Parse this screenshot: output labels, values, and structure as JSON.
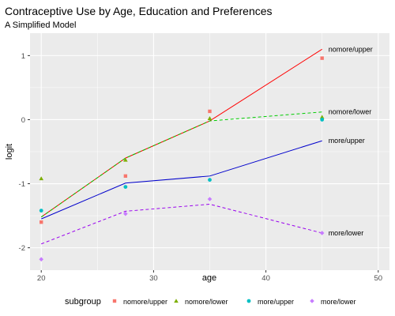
{
  "chart_data": {
    "type": "line",
    "title": "Contraceptive Use by Age, Education and Preferences",
    "subtitle": "A Simplified Model",
    "xlabel": "age",
    "ylabel": "logit",
    "xlim": [
      19,
      51
    ],
    "ylim": [
      -2.35,
      1.35
    ],
    "x_ticks": [
      20,
      30,
      40,
      50
    ],
    "y_ticks": [
      1,
      0,
      -1,
      -2
    ],
    "x_tick_labels": [
      "20",
      "30",
      "40",
      "50"
    ],
    "y_tick_labels": [
      "1",
      "0",
      "-1",
      "-2"
    ],
    "grid": true,
    "legend_title": "subgroup",
    "legend_position": "bottom",
    "series": [
      {
        "name": "nomore/upper",
        "color": "#f8766d",
        "line_color": "#ff0000",
        "line_style": "solid",
        "point_shape": "square",
        "point_x": [
          20,
          27.5,
          35,
          45
        ],
        "point_y": [
          -1.6,
          -0.88,
          0.13,
          0.96
        ],
        "line_x": [
          20,
          27.5,
          35,
          45
        ],
        "line_y": [
          -1.52,
          -0.6,
          -0.02,
          1.1
        ]
      },
      {
        "name": "nomore/lower",
        "color": "#7cae00",
        "line_color": "#00cc00",
        "line_style": "dashed",
        "point_shape": "triangle",
        "point_x": [
          20,
          27.5,
          35,
          45
        ],
        "point_y": [
          -0.92,
          -0.63,
          0.02,
          0.04
        ],
        "line_x": [
          20,
          27.5,
          35,
          45
        ],
        "line_y": [
          -1.52,
          -0.6,
          -0.02,
          0.12
        ]
      },
      {
        "name": "more/upper",
        "color": "#00bfc4",
        "line_color": "#0000cc",
        "line_style": "solid",
        "point_shape": "circle",
        "point_x": [
          20,
          27.5,
          35,
          45
        ],
        "point_y": [
          -1.42,
          -1.05,
          -0.94,
          0.0
        ],
        "line_x": [
          20,
          27.5,
          35,
          45
        ],
        "line_y": [
          -1.55,
          -0.99,
          -0.88,
          -0.33
        ]
      },
      {
        "name": "more/lower",
        "color": "#c77cff",
        "line_color": "#9900ee",
        "line_style": "dashed",
        "point_shape": "diamond",
        "point_x": [
          20,
          27.5,
          35,
          45
        ],
        "point_y": [
          -2.18,
          -1.47,
          -1.24,
          -1.77
        ],
        "line_x": [
          20,
          27.5,
          35,
          45
        ],
        "line_y": [
          -1.94,
          -1.43,
          -1.32,
          -1.77
        ]
      }
    ]
  }
}
